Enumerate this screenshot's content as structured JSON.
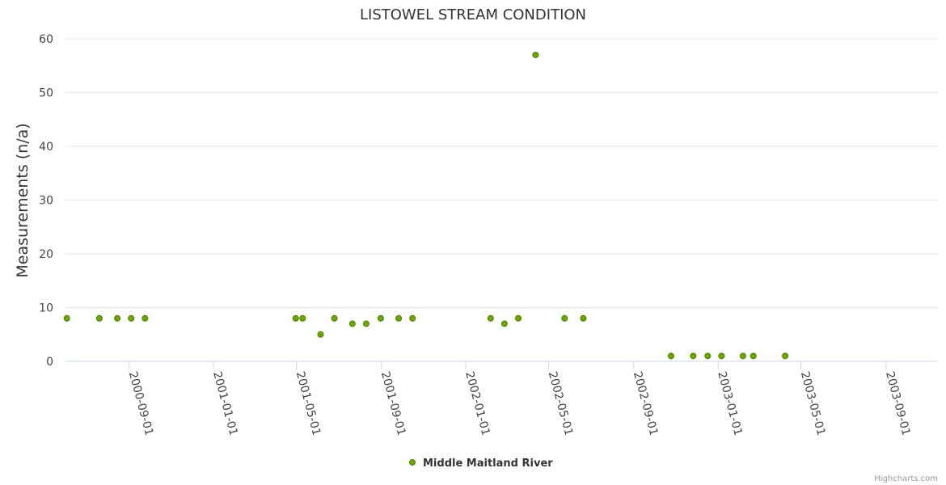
{
  "chart_data": {
    "type": "scatter",
    "title": "LISTOWEL STREAM CONDITION",
    "xlabel": "",
    "ylabel": "Measurements (n/a)",
    "ylim": [
      0,
      60
    ],
    "yticks": [
      0,
      10,
      20,
      30,
      40,
      50,
      60
    ],
    "xrange": [
      "2000-06-01",
      "2003-11-15"
    ],
    "xticks": [
      "2000-09-01",
      "2001-01-01",
      "2001-05-01",
      "2001-09-01",
      "2002-01-01",
      "2002-05-01",
      "2002-09-01",
      "2003-01-01",
      "2003-05-01",
      "2003-09-01"
    ],
    "legend_position": "bottom-center",
    "series": [
      {
        "name": "Middle Maitland River",
        "color": "#6aaa00",
        "edge_color": "#4d7d00",
        "points": [
          {
            "x": "2000-06-03",
            "y": 8
          },
          {
            "x": "2000-07-20",
            "y": 8
          },
          {
            "x": "2000-08-15",
            "y": 8
          },
          {
            "x": "2000-09-04",
            "y": 8
          },
          {
            "x": "2000-09-24",
            "y": 8
          },
          {
            "x": "2001-04-30",
            "y": 8
          },
          {
            "x": "2001-05-10",
            "y": 8
          },
          {
            "x": "2001-06-05",
            "y": 5
          },
          {
            "x": "2001-06-25",
            "y": 8
          },
          {
            "x": "2001-07-21",
            "y": 7
          },
          {
            "x": "2001-08-10",
            "y": 7
          },
          {
            "x": "2001-08-31",
            "y": 8
          },
          {
            "x": "2001-09-26",
            "y": 8
          },
          {
            "x": "2001-10-16",
            "y": 8
          },
          {
            "x": "2002-02-06",
            "y": 8
          },
          {
            "x": "2002-02-26",
            "y": 7
          },
          {
            "x": "2002-03-18",
            "y": 8
          },
          {
            "x": "2002-04-12",
            "y": 57
          },
          {
            "x": "2002-05-24",
            "y": 8
          },
          {
            "x": "2002-06-20",
            "y": 8
          },
          {
            "x": "2002-10-25",
            "y": 1
          },
          {
            "x": "2002-11-26",
            "y": 1
          },
          {
            "x": "2002-12-17",
            "y": 1
          },
          {
            "x": "2003-01-06",
            "y": 1
          },
          {
            "x": "2003-02-06",
            "y": 1
          },
          {
            "x": "2003-02-21",
            "y": 1
          },
          {
            "x": "2003-04-08",
            "y": 1
          }
        ]
      }
    ]
  },
  "credits": "Highcharts.com"
}
